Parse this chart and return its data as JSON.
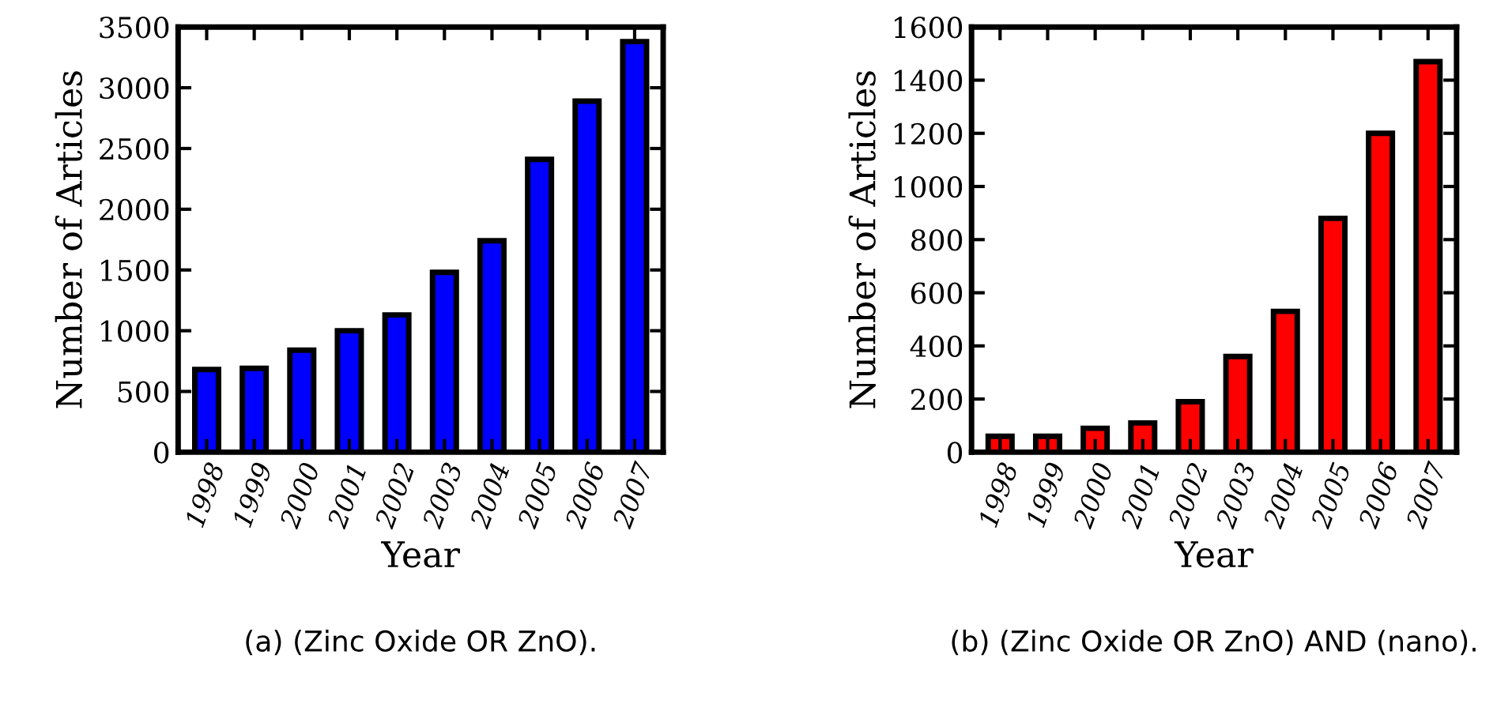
{
  "chart_data": [
    {
      "type": "bar",
      "categories": [
        "1998",
        "1999",
        "2000",
        "2001",
        "2002",
        "2003",
        "2004",
        "2005",
        "2006",
        "2007"
      ],
      "values": [
        680,
        690,
        840,
        1000,
        1130,
        1480,
        1740,
        2410,
        2890,
        3380
      ],
      "color": "#0000ff",
      "xlabel": "Year",
      "ylabel": "Number of Articles",
      "ylim": [
        0,
        3500
      ],
      "yticks": [
        0,
        500,
        1000,
        1500,
        2000,
        2500,
        3000,
        3500
      ],
      "grid": false,
      "annotations": [
        "(a) (Zinc Oxide OR ZnO)."
      ]
    },
    {
      "type": "bar",
      "categories": [
        "1998",
        "1999",
        "2000",
        "2001",
        "2002",
        "2003",
        "2004",
        "2005",
        "2006",
        "2007"
      ],
      "values": [
        60,
        60,
        90,
        110,
        190,
        360,
        530,
        880,
        1200,
        1470
      ],
      "color": "#ff0000",
      "xlabel": "Year",
      "ylabel": "Number of Articles",
      "ylim": [
        0,
        1600
      ],
      "yticks": [
        0,
        200,
        400,
        600,
        800,
        1000,
        1200,
        1400,
        1600
      ],
      "grid": false,
      "annotations": [
        "(b) (Zinc Oxide OR ZnO) AND (nano)."
      ]
    }
  ]
}
